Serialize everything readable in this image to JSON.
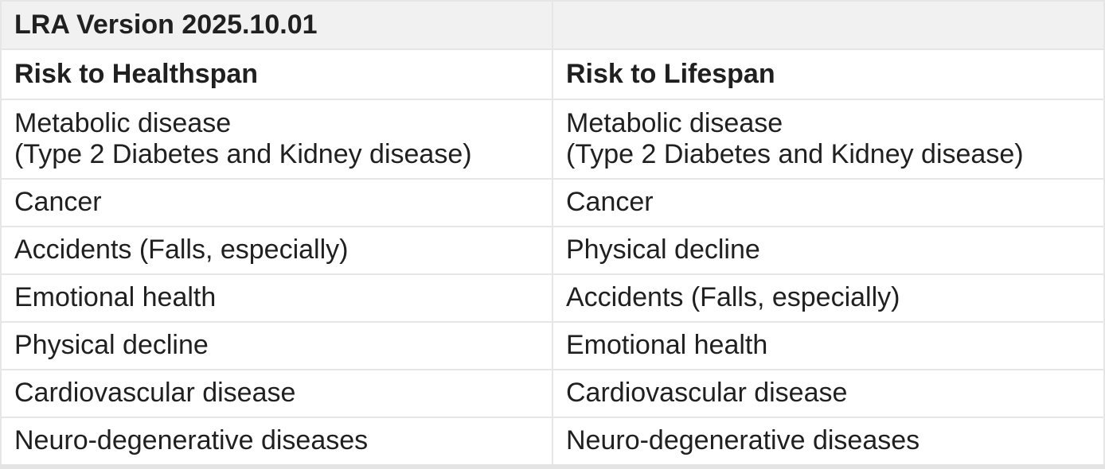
{
  "table": {
    "version_title": "LRA Version 2025.10.01",
    "column_headers": [
      "Risk to Healthspan",
      "Risk to Lifespan"
    ],
    "rows": [
      {
        "healthspan": "Metabolic disease\n(Type 2 Diabetes and Kidney disease)",
        "lifespan": "Metabolic disease\n(Type 2 Diabetes and Kidney disease)"
      },
      {
        "healthspan": "Cancer",
        "lifespan": "Cancer"
      },
      {
        "healthspan": "Accidents (Falls, especially)",
        "lifespan": "Physical decline"
      },
      {
        "healthspan": "Emotional health",
        "lifespan": "Accidents (Falls, especially)"
      },
      {
        "healthspan": "Physical decline",
        "lifespan": "Emotional health"
      },
      {
        "healthspan": "Cardiovascular disease",
        "lifespan": "Cardiovascular disease"
      },
      {
        "healthspan": "Neuro-degenerative diseases",
        "lifespan": "Neuro-degenerative diseases"
      }
    ],
    "colors": {
      "title_row_background": "#f1f1f1",
      "border": "#e4e4e4",
      "text": "#202020",
      "background": "#ffffff"
    }
  }
}
